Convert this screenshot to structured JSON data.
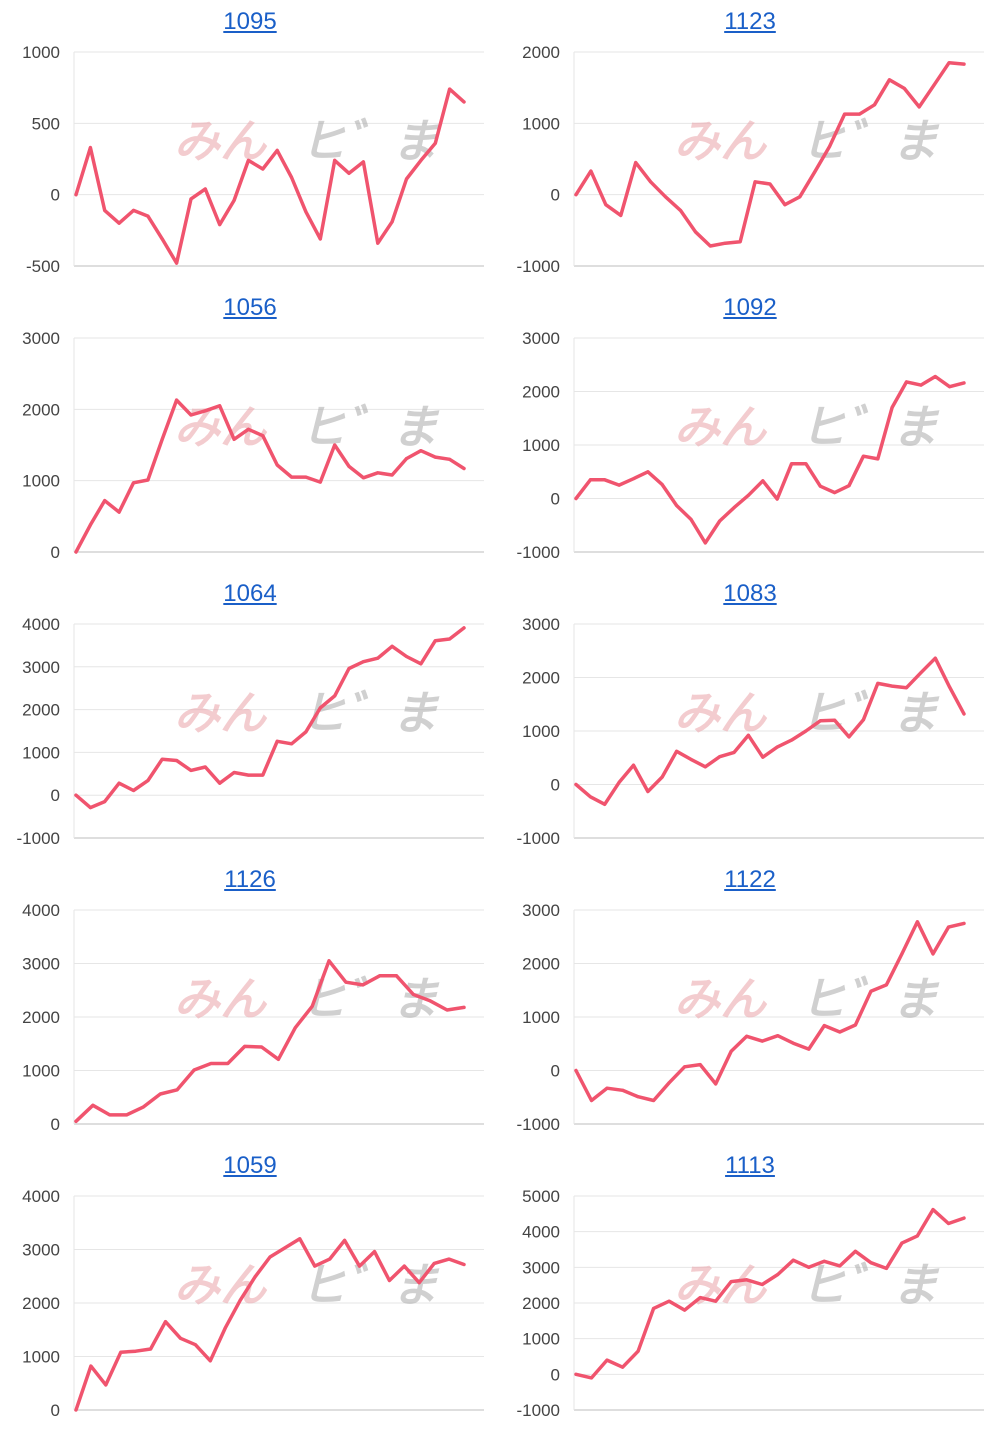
{
  "colors": {
    "line": "#f0546e",
    "grid": "#e6e6e6",
    "axis": "#bdbdbd",
    "title_link": "#1a5fc8"
  },
  "watermark": {
    "left": "みん",
    "right": "ヒ゛ま"
  },
  "chart_data": [
    {
      "type": "line",
      "title": "1095",
      "ylim": [
        -500,
        1000
      ],
      "yticks": [
        -500,
        0,
        500,
        1000
      ],
      "series": [
        {
          "values": [
            0,
            330,
            -110,
            -200,
            -110,
            -150,
            -310,
            -480,
            -30,
            40,
            -210,
            -40,
            240,
            180,
            310,
            120,
            -120,
            -310,
            240,
            150,
            230,
            -340,
            -190,
            110,
            240,
            360,
            740,
            650
          ]
        }
      ]
    },
    {
      "type": "line",
      "title": "1123",
      "ylim": [
        -1000,
        2000
      ],
      "yticks": [
        -1000,
        0,
        1000,
        2000
      ],
      "series": [
        {
          "values": [
            0,
            330,
            -140,
            -290,
            450,
            180,
            -30,
            -220,
            -520,
            -720,
            -680,
            -660,
            180,
            150,
            -140,
            -30,
            320,
            680,
            1130,
            1130,
            1260,
            1610,
            1490,
            1230,
            1540,
            1850,
            1830
          ]
        }
      ]
    },
    {
      "type": "line",
      "title": "1056",
      "ylim": [
        0,
        3000
      ],
      "yticks": [
        0,
        1000,
        2000,
        3000
      ],
      "series": [
        {
          "values": [
            0,
            380,
            720,
            560,
            970,
            1010,
            1580,
            2130,
            1920,
            1980,
            2050,
            1580,
            1720,
            1630,
            1220,
            1050,
            1050,
            980,
            1500,
            1200,
            1040,
            1110,
            1080,
            1310,
            1420,
            1330,
            1300,
            1170
          ]
        }
      ]
    },
    {
      "type": "line",
      "title": "1092",
      "ylim": [
        -1000,
        3000
      ],
      "yticks": [
        -1000,
        0,
        1000,
        2000,
        3000
      ],
      "series": [
        {
          "values": [
            0,
            350,
            350,
            250,
            370,
            500,
            260,
            -130,
            -390,
            -830,
            -420,
            -170,
            60,
            330,
            -10,
            650,
            650,
            230,
            110,
            240,
            790,
            740,
            1700,
            2180,
            2120,
            2280,
            2090,
            2160
          ]
        }
      ]
    },
    {
      "type": "line",
      "title": "1064",
      "ylim": [
        -1000,
        4000
      ],
      "yticks": [
        -1000,
        0,
        1000,
        2000,
        3000,
        4000
      ],
      "series": [
        {
          "values": [
            0,
            -290,
            -150,
            280,
            110,
            340,
            840,
            810,
            580,
            660,
            280,
            530,
            470,
            470,
            1260,
            1200,
            1480,
            2040,
            2320,
            2960,
            3120,
            3200,
            3480,
            3240,
            3070,
            3610,
            3650,
            3910
          ]
        }
      ]
    },
    {
      "type": "line",
      "title": "1083",
      "ylim": [
        -1000,
        3000
      ],
      "yticks": [
        -1000,
        0,
        1000,
        2000,
        3000
      ],
      "series": [
        {
          "values": [
            0,
            -230,
            -370,
            40,
            360,
            -130,
            140,
            620,
            470,
            330,
            520,
            600,
            920,
            510,
            700,
            830,
            1000,
            1190,
            1200,
            890,
            1210,
            1890,
            1840,
            1810,
            2090,
            2360,
            1820,
            1320
          ]
        }
      ]
    },
    {
      "type": "line",
      "title": "1126",
      "ylim": [
        0,
        4000
      ],
      "yticks": [
        0,
        1000,
        2000,
        3000,
        4000
      ],
      "series": [
        {
          "values": [
            50,
            350,
            170,
            170,
            320,
            560,
            640,
            1010,
            1130,
            1130,
            1450,
            1440,
            1210,
            1800,
            2200,
            3050,
            2650,
            2600,
            2770,
            2770,
            2420,
            2300,
            2130,
            2180
          ]
        }
      ]
    },
    {
      "type": "line",
      "title": "1122",
      "ylim": [
        -1000,
        3000
      ],
      "yticks": [
        -1000,
        0,
        1000,
        2000,
        3000
      ],
      "series": [
        {
          "values": [
            0,
            -560,
            -330,
            -370,
            -490,
            -560,
            -230,
            70,
            110,
            -250,
            360,
            640,
            550,
            650,
            510,
            400,
            840,
            720,
            850,
            1480,
            1600,
            2180,
            2780,
            2180,
            2680,
            2750
          ]
        }
      ]
    },
    {
      "type": "line",
      "title": "1059",
      "ylim": [
        0,
        4000
      ],
      "yticks": [
        0,
        1000,
        2000,
        3000,
        4000
      ],
      "series": [
        {
          "values": [
            0,
            820,
            470,
            1080,
            1100,
            1140,
            1650,
            1340,
            1220,
            920,
            1530,
            2050,
            2490,
            2860,
            3030,
            3200,
            2690,
            2820,
            3170,
            2690,
            2960,
            2420,
            2690,
            2380,
            2740,
            2820,
            2720
          ]
        }
      ]
    },
    {
      "type": "line",
      "title": "1113",
      "ylim": [
        -1000,
        5000
      ],
      "yticks": [
        -1000,
        0,
        1000,
        2000,
        3000,
        4000,
        5000
      ],
      "series": [
        {
          "values": [
            0,
            -100,
            400,
            200,
            650,
            1850,
            2050,
            1800,
            2150,
            2050,
            2600,
            2650,
            2520,
            2800,
            3200,
            3000,
            3170,
            3040,
            3450,
            3130,
            2970,
            3680,
            3880,
            4620,
            4230,
            4380
          ]
        }
      ]
    }
  ]
}
